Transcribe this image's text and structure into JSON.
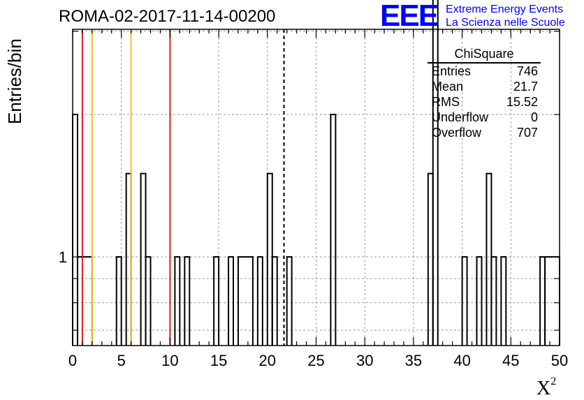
{
  "header": {
    "title": "ROMA-02-2017-11-14-00200",
    "logo_mark": "EEE",
    "logo_line1": "Extreme Energy Events",
    "logo_line2": "La Scienza nelle Scuole",
    "logo_color": "#0000ff"
  },
  "stats_box": {
    "title": "ChiSquare",
    "rows": [
      {
        "label": "Entries",
        "value": "746"
      },
      {
        "label": "Mean",
        "value": "21.7"
      },
      {
        "label": "RMS",
        "value": "15.52"
      },
      {
        "label": "Underflow",
        "value": "0"
      },
      {
        "label": "Overflow",
        "value": "707"
      }
    ]
  },
  "chart_data": {
    "type": "histogram",
    "title": "ROMA-02-2017-11-14-00200",
    "xlabel": "X²",
    "ylabel": "Entries/bin",
    "xlim": [
      0,
      50
    ],
    "x_ticks": [
      0,
      5,
      10,
      15,
      20,
      25,
      30,
      35,
      40,
      45,
      50
    ],
    "y_scale": "log",
    "y_tick_labels": [
      "1"
    ],
    "y_range_note": "log axis; bottom below 1, top above 2",
    "bin_width": 0.5,
    "grid": true,
    "bins": [
      {
        "x_low": 0.0,
        "x_high": 0.5,
        "count": 2
      },
      {
        "x_low": 0.5,
        "x_high": 2.0,
        "count": 1
      },
      {
        "x_low": 4.5,
        "x_high": 5.0,
        "count": 1
      },
      {
        "x_low": 5.5,
        "x_high": 6.0,
        "count": 1.5
      },
      {
        "x_low": 7.0,
        "x_high": 7.5,
        "count": 1.5
      },
      {
        "x_low": 7.5,
        "x_high": 8.0,
        "count": 1
      },
      {
        "x_low": 10.5,
        "x_high": 11.0,
        "count": 1
      },
      {
        "x_low": 11.5,
        "x_high": 12.0,
        "count": 1
      },
      {
        "x_low": 14.5,
        "x_high": 15.0,
        "count": 1
      },
      {
        "x_low": 16.0,
        "x_high": 16.5,
        "count": 1
      },
      {
        "x_low": 17.0,
        "x_high": 18.5,
        "count": 1
      },
      {
        "x_low": 19.0,
        "x_high": 19.5,
        "count": 1
      },
      {
        "x_low": 20.0,
        "x_high": 20.5,
        "count": 1.5
      },
      {
        "x_low": 20.5,
        "x_high": 21.0,
        "count": 1
      },
      {
        "x_low": 22.0,
        "x_high": 22.5,
        "count": 1
      },
      {
        "x_low": 26.5,
        "x_high": 27.0,
        "count": 2
      },
      {
        "x_low": 36.5,
        "x_high": 37.0,
        "count": 1.5
      },
      {
        "x_low": 37.0,
        "x_high": 37.5,
        "count": 4
      },
      {
        "x_low": 40.0,
        "x_high": 40.5,
        "count": 1
      },
      {
        "x_low": 41.5,
        "x_high": 42.0,
        "count": 1
      },
      {
        "x_low": 42.5,
        "x_high": 43.0,
        "count": 1.5
      },
      {
        "x_low": 43.0,
        "x_high": 43.5,
        "count": 1
      },
      {
        "x_low": 44.0,
        "x_high": 44.5,
        "count": 1
      },
      {
        "x_low": 48.0,
        "x_high": 48.5,
        "count": 1
      },
      {
        "x_low": 48.5,
        "x_high": 50.0,
        "count": 1
      }
    ],
    "vertical_lines": [
      {
        "x": 1.0,
        "color": "#e02020",
        "style": "solid"
      },
      {
        "x": 2.0,
        "color": "#f0c020",
        "style": "solid"
      },
      {
        "x": 6.0,
        "color": "#f0c020",
        "style": "solid"
      },
      {
        "x": 10.0,
        "color": "#e02020",
        "style": "solid"
      },
      {
        "x": 21.7,
        "color": "#000000",
        "style": "dashed"
      }
    ]
  }
}
